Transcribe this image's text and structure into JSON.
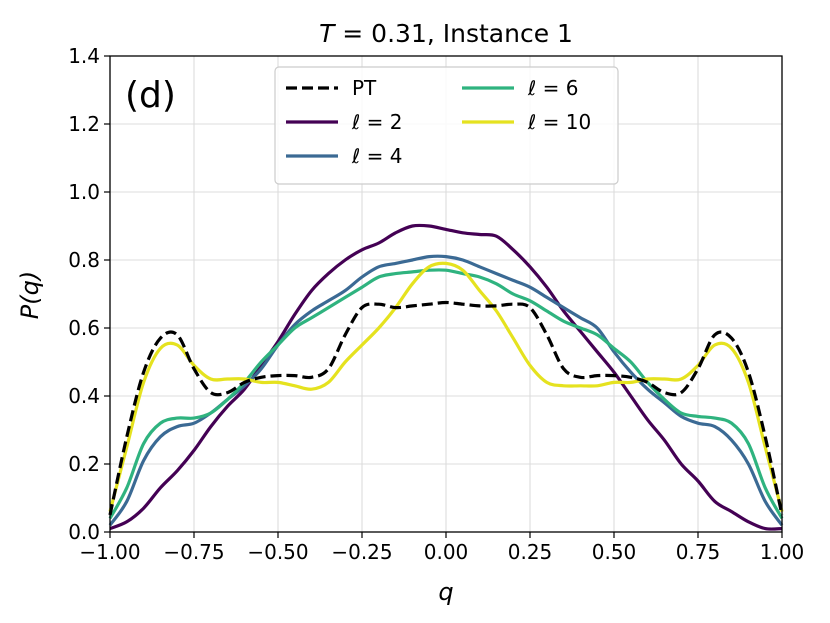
{
  "chart_data": {
    "type": "line",
    "title": "T = 0.31, Instance 1",
    "title_parts": {
      "var": "T",
      "rest": " = 0.31, Instance 1"
    },
    "panel_label": "(d)",
    "xlabel": "q",
    "ylabel": "P(q)",
    "xlim": [
      -1.0,
      1.0
    ],
    "ylim": [
      0.0,
      1.4
    ],
    "grid": true,
    "xticks": [
      -1.0,
      -0.75,
      -0.5,
      -0.25,
      0.0,
      0.25,
      0.5,
      0.75,
      1.0
    ],
    "xtick_labels": [
      "−1.00",
      "−0.75",
      "−0.50",
      "−0.25",
      "0.00",
      "0.25",
      "0.50",
      "0.75",
      "1.00"
    ],
    "yticks": [
      0.0,
      0.2,
      0.4,
      0.6,
      0.8,
      1.0,
      1.2,
      1.4
    ],
    "ytick_labels": [
      "0.0",
      "0.2",
      "0.4",
      "0.6",
      "0.8",
      "1.0",
      "1.2",
      "1.4"
    ],
    "legend_location": "upper-center",
    "x": [
      -1.0,
      -0.95,
      -0.9,
      -0.85,
      -0.8,
      -0.75,
      -0.7,
      -0.65,
      -0.6,
      -0.55,
      -0.5,
      -0.45,
      -0.4,
      -0.35,
      -0.3,
      -0.25,
      -0.2,
      -0.15,
      -0.1,
      -0.05,
      0.0,
      0.05,
      0.1,
      0.15,
      0.2,
      0.25,
      0.3,
      0.35,
      0.4,
      0.45,
      0.5,
      0.55,
      0.6,
      0.65,
      0.7,
      0.75,
      0.8,
      0.85,
      0.9,
      0.95,
      1.0
    ],
    "series": [
      {
        "name": "PT",
        "label": "PT",
        "color": "#000000",
        "dashed": true,
        "values": [
          0.05,
          0.28,
          0.47,
          0.57,
          0.58,
          0.48,
          0.41,
          0.41,
          0.44,
          0.455,
          0.46,
          0.46,
          0.455,
          0.48,
          0.58,
          0.66,
          0.67,
          0.66,
          0.665,
          0.67,
          0.675,
          0.67,
          0.665,
          0.665,
          0.67,
          0.66,
          0.58,
          0.48,
          0.455,
          0.46,
          0.46,
          0.455,
          0.44,
          0.41,
          0.41,
          0.48,
          0.58,
          0.57,
          0.47,
          0.28,
          0.05
        ]
      },
      {
        "name": "l=2",
        "label_var": "ℓ",
        "label_rest": " = 2",
        "color": "#440154",
        "dashed": false,
        "values": [
          0.01,
          0.03,
          0.07,
          0.13,
          0.18,
          0.24,
          0.31,
          0.37,
          0.42,
          0.49,
          0.56,
          0.64,
          0.71,
          0.76,
          0.8,
          0.83,
          0.85,
          0.88,
          0.9,
          0.9,
          0.89,
          0.88,
          0.875,
          0.87,
          0.83,
          0.78,
          0.72,
          0.65,
          0.59,
          0.53,
          0.47,
          0.4,
          0.33,
          0.27,
          0.2,
          0.15,
          0.09,
          0.06,
          0.03,
          0.01,
          0.01
        ]
      },
      {
        "name": "l=4",
        "label_var": "ℓ",
        "label_rest": " = 4",
        "color": "#3b6a94",
        "dashed": false,
        "values": [
          0.02,
          0.09,
          0.21,
          0.28,
          0.31,
          0.32,
          0.35,
          0.39,
          0.43,
          0.48,
          0.55,
          0.61,
          0.65,
          0.68,
          0.71,
          0.75,
          0.78,
          0.79,
          0.8,
          0.81,
          0.81,
          0.8,
          0.78,
          0.76,
          0.74,
          0.72,
          0.69,
          0.66,
          0.63,
          0.6,
          0.53,
          0.47,
          0.42,
          0.38,
          0.34,
          0.32,
          0.31,
          0.27,
          0.2,
          0.09,
          0.02
        ]
      },
      {
        "name": "l=6",
        "label_var": "ℓ",
        "label_rest": " = 6",
        "color": "#2fb37f",
        "dashed": false,
        "values": [
          0.04,
          0.13,
          0.26,
          0.32,
          0.335,
          0.335,
          0.35,
          0.39,
          0.44,
          0.5,
          0.55,
          0.6,
          0.63,
          0.66,
          0.69,
          0.72,
          0.75,
          0.76,
          0.765,
          0.77,
          0.77,
          0.76,
          0.75,
          0.73,
          0.7,
          0.68,
          0.65,
          0.62,
          0.6,
          0.58,
          0.54,
          0.5,
          0.44,
          0.39,
          0.35,
          0.34,
          0.335,
          0.32,
          0.26,
          0.13,
          0.04
        ]
      },
      {
        "name": "l=10",
        "label_var": "ℓ",
        "label_rest": " = 10",
        "color": "#e5e21f",
        "dashed": false,
        "values": [
          0.06,
          0.25,
          0.44,
          0.54,
          0.55,
          0.49,
          0.45,
          0.45,
          0.45,
          0.44,
          0.44,
          0.43,
          0.42,
          0.44,
          0.5,
          0.55,
          0.6,
          0.66,
          0.73,
          0.78,
          0.79,
          0.77,
          0.71,
          0.65,
          0.57,
          0.49,
          0.44,
          0.43,
          0.43,
          0.43,
          0.44,
          0.44,
          0.45,
          0.45,
          0.45,
          0.49,
          0.55,
          0.54,
          0.44,
          0.25,
          0.06
        ]
      }
    ]
  }
}
